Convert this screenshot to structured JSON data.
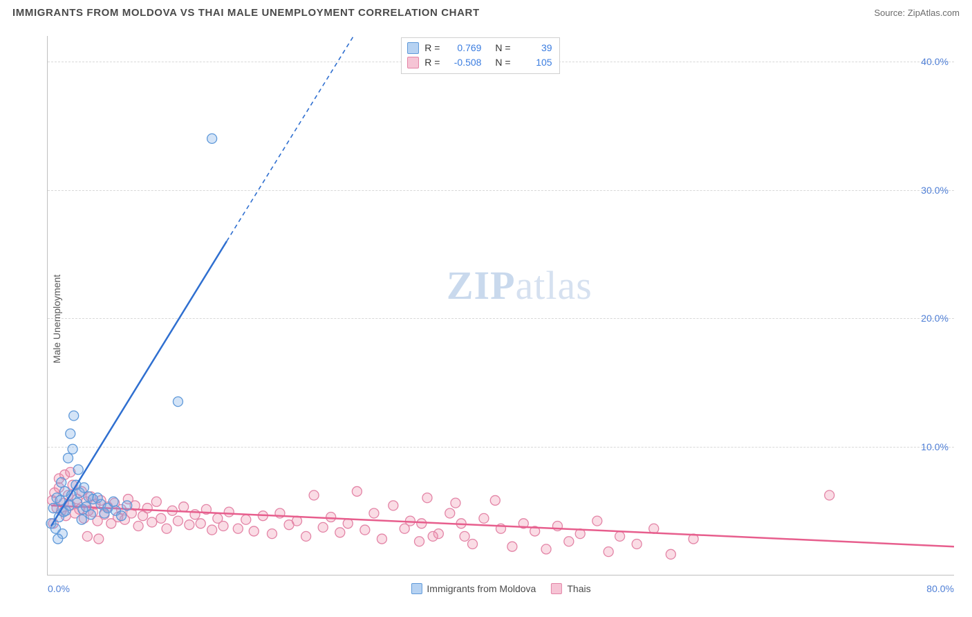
{
  "header": {
    "title": "IMMIGRANTS FROM MOLDOVA VS THAI MALE UNEMPLOYMENT CORRELATION CHART",
    "source_prefix": "Source: ",
    "source_name": "ZipAtlas.com"
  },
  "y_axis": {
    "label": "Male Unemployment"
  },
  "chart": {
    "type": "scatter",
    "xlim": [
      0,
      80
    ],
    "ylim": [
      0,
      42
    ],
    "y_ticks": [
      10,
      20,
      30,
      40
    ],
    "y_tick_labels": [
      "10.0%",
      "20.0%",
      "30.0%",
      "40.0%"
    ],
    "x_tick_left": "0.0%",
    "x_tick_right": "80.0%",
    "grid_color": "#d8d8d8",
    "background": "#ffffff",
    "axis_color": "#bfbfbf",
    "tick_text_color": "#4f7fd6",
    "marker_radius": 7,
    "series": [
      {
        "key": "moldova",
        "legend_label": "Immigrants from Moldova",
        "color_fill": "rgba(120,170,230,0.32)",
        "color_stroke": "#5f99d9",
        "line_color": "#2f6fd0",
        "R_label": "R =",
        "R": "0.769",
        "N_label": "N =",
        "N": "39",
        "points": [
          [
            0.3,
            4.0
          ],
          [
            0.5,
            5.2
          ],
          [
            0.7,
            3.6
          ],
          [
            0.8,
            6.0
          ],
          [
            1.0,
            4.5
          ],
          [
            1.1,
            5.8
          ],
          [
            1.2,
            7.2
          ],
          [
            1.4,
            4.9
          ],
          [
            1.5,
            6.5
          ],
          [
            1.6,
            5.0
          ],
          [
            1.8,
            9.1
          ],
          [
            1.9,
            5.4
          ],
          [
            2.0,
            11.0
          ],
          [
            2.1,
            6.2
          ],
          [
            2.2,
            9.8
          ],
          [
            2.3,
            12.4
          ],
          [
            2.5,
            7.0
          ],
          [
            2.6,
            5.6
          ],
          [
            2.7,
            8.2
          ],
          [
            2.8,
            6.4
          ],
          [
            3.0,
            4.3
          ],
          [
            3.1,
            5.1
          ],
          [
            3.2,
            6.8
          ],
          [
            3.4,
            5.3
          ],
          [
            3.6,
            6.1
          ],
          [
            3.8,
            4.7
          ],
          [
            4.0,
            5.9
          ],
          [
            4.4,
            6.0
          ],
          [
            4.7,
            5.5
          ],
          [
            5.0,
            4.8
          ],
          [
            5.3,
            5.2
          ],
          [
            5.8,
            5.7
          ],
          [
            6.0,
            5.0
          ],
          [
            6.5,
            4.6
          ],
          [
            7.0,
            5.4
          ],
          [
            1.3,
            3.2
          ],
          [
            0.9,
            2.8
          ],
          [
            11.5,
            13.5
          ],
          [
            14.5,
            34.0
          ]
        ],
        "trend_solid": [
          [
            0.3,
            3.8
          ],
          [
            15.8,
            26.0
          ]
        ],
        "trend_dashed": [
          [
            15.8,
            26.0
          ],
          [
            27.0,
            42.0
          ]
        ]
      },
      {
        "key": "thais",
        "legend_label": "Thais",
        "color_fill": "rgba(240,140,170,0.30)",
        "color_stroke": "#e384a6",
        "line_color": "#e75e8d",
        "R_label": "R =",
        "R": "-0.508",
        "N_label": "N =",
        "N": "105",
        "points": [
          [
            0.4,
            5.8
          ],
          [
            0.6,
            6.4
          ],
          [
            0.8,
            5.2
          ],
          [
            1.0,
            6.8
          ],
          [
            1.2,
            5.0
          ],
          [
            1.4,
            5.6
          ],
          [
            1.6,
            4.6
          ],
          [
            1.8,
            6.2
          ],
          [
            2.0,
            5.4
          ],
          [
            2.2,
            7.0
          ],
          [
            2.4,
            4.8
          ],
          [
            2.6,
            5.9
          ],
          [
            2.8,
            5.1
          ],
          [
            3.0,
            6.5
          ],
          [
            3.2,
            4.4
          ],
          [
            3.4,
            5.7
          ],
          [
            3.6,
            5.0
          ],
          [
            3.8,
            6.1
          ],
          [
            4.0,
            4.9
          ],
          [
            4.2,
            5.5
          ],
          [
            4.4,
            4.2
          ],
          [
            4.7,
            5.8
          ],
          [
            5.0,
            4.7
          ],
          [
            5.3,
            5.3
          ],
          [
            5.6,
            4.0
          ],
          [
            5.9,
            5.6
          ],
          [
            6.2,
            4.5
          ],
          [
            6.5,
            5.1
          ],
          [
            6.8,
            4.3
          ],
          [
            7.1,
            5.9
          ],
          [
            7.4,
            4.8
          ],
          [
            7.7,
            5.4
          ],
          [
            8.0,
            3.8
          ],
          [
            8.4,
            4.6
          ],
          [
            8.8,
            5.2
          ],
          [
            9.2,
            4.1
          ],
          [
            9.6,
            5.7
          ],
          [
            10.0,
            4.4
          ],
          [
            10.5,
            3.6
          ],
          [
            11.0,
            5.0
          ],
          [
            11.5,
            4.2
          ],
          [
            12.0,
            5.3
          ],
          [
            12.5,
            3.9
          ],
          [
            13.0,
            4.7
          ],
          [
            13.5,
            4.0
          ],
          [
            14.0,
            5.1
          ],
          [
            14.5,
            3.5
          ],
          [
            15.0,
            4.4
          ],
          [
            15.5,
            3.8
          ],
          [
            16.0,
            4.9
          ],
          [
            16.8,
            3.6
          ],
          [
            17.5,
            4.3
          ],
          [
            18.2,
            3.4
          ],
          [
            19.0,
            4.6
          ],
          [
            19.8,
            3.2
          ],
          [
            20.5,
            4.8
          ],
          [
            21.3,
            3.9
          ],
          [
            22.0,
            4.2
          ],
          [
            22.8,
            3.0
          ],
          [
            23.5,
            6.2
          ],
          [
            24.3,
            3.7
          ],
          [
            25.0,
            4.5
          ],
          [
            25.8,
            3.3
          ],
          [
            26.5,
            4.0
          ],
          [
            27.3,
            6.5
          ],
          [
            28.0,
            3.5
          ],
          [
            28.8,
            4.8
          ],
          [
            29.5,
            2.8
          ],
          [
            30.5,
            5.4
          ],
          [
            31.5,
            3.6
          ],
          [
            32.0,
            4.2
          ],
          [
            32.8,
            2.6
          ],
          [
            33.5,
            6.0
          ],
          [
            34.5,
            3.2
          ],
          [
            35.5,
            4.8
          ],
          [
            36.0,
            5.6
          ],
          [
            36.8,
            3.0
          ],
          [
            37.5,
            2.4
          ],
          [
            38.5,
            4.4
          ],
          [
            39.5,
            5.8
          ],
          [
            40.0,
            3.6
          ],
          [
            41.0,
            2.2
          ],
          [
            42.0,
            4.0
          ],
          [
            43.0,
            3.4
          ],
          [
            44.0,
            2.0
          ],
          [
            45.0,
            3.8
          ],
          [
            46.0,
            2.6
          ],
          [
            47.0,
            3.2
          ],
          [
            48.5,
            4.2
          ],
          [
            49.5,
            1.8
          ],
          [
            50.5,
            3.0
          ],
          [
            52.0,
            2.4
          ],
          [
            53.5,
            3.6
          ],
          [
            55.0,
            1.6
          ],
          [
            57.0,
            2.8
          ],
          [
            1.0,
            7.5
          ],
          [
            1.5,
            7.8
          ],
          [
            2.0,
            8.0
          ],
          [
            0.5,
            4.0
          ],
          [
            33.0,
            4.0
          ],
          [
            34.0,
            3.0
          ],
          [
            36.5,
            4.0
          ],
          [
            69.0,
            6.2
          ],
          [
            3.5,
            3.0
          ],
          [
            4.5,
            2.8
          ]
        ],
        "trend_solid": [
          [
            0.3,
            5.4
          ],
          [
            80.0,
            2.2
          ]
        ],
        "trend_dashed": null
      }
    ]
  },
  "watermark": {
    "zip": "ZIP",
    "atlas": "atlas"
  },
  "legend_swatch": {
    "moldova": {
      "fill": "#b6d2f2",
      "border": "#5f99d9"
    },
    "thais": {
      "fill": "#f6c4d5",
      "border": "#e384a6"
    }
  }
}
